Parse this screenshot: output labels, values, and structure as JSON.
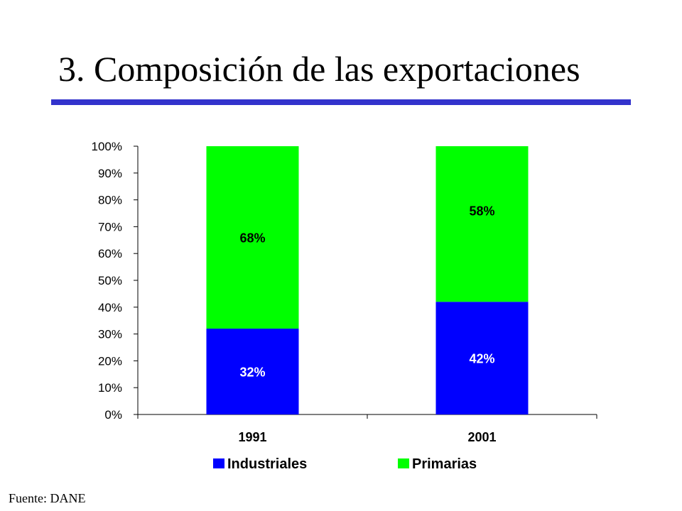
{
  "title": "3. Composición de las exportaciones",
  "source": "Fuente: DANE",
  "colors": {
    "industriales": "#0000ff",
    "primarias": "#00ff00",
    "title_rule": "#3333cc"
  },
  "chart_data": {
    "type": "bar",
    "stacked": true,
    "categories": [
      "1991",
      "2001"
    ],
    "series": [
      {
        "name": "Industriales",
        "values": [
          32,
          42
        ],
        "labels": [
          "32%",
          "42%"
        ],
        "color": "#0000ff"
      },
      {
        "name": "Primarias",
        "values": [
          68,
          58
        ],
        "labels": [
          "68%",
          "58%"
        ],
        "color": "#00ff00"
      }
    ],
    "ylim": [
      0,
      100
    ],
    "yticks": [
      "0%",
      "10%",
      "20%",
      "30%",
      "40%",
      "50%",
      "60%",
      "70%",
      "80%",
      "90%",
      "100%"
    ],
    "grid": false,
    "legend": "bottom"
  }
}
